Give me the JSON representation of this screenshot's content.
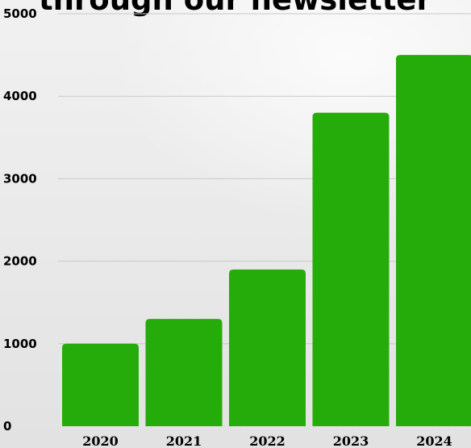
{
  "chart_data": {
    "type": "bar",
    "title": "through our newsletter",
    "categories": [
      "2020",
      "2021",
      "2022",
      "2023",
      "2024"
    ],
    "values": [
      1000,
      1300,
      1900,
      3800,
      4500
    ],
    "ylim": [
      0,
      5000
    ],
    "yticks": [
      0,
      1000,
      2000,
      3000,
      4000,
      5000
    ],
    "xlabel": "",
    "ylabel": "",
    "grid": true,
    "bar_color": "#26ac0a",
    "gridline_color": "#c9c9c9"
  }
}
